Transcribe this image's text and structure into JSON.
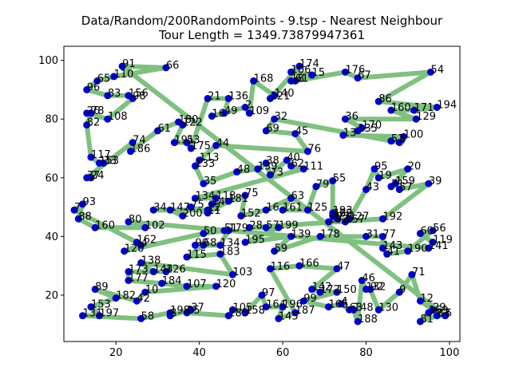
{
  "chart_data": {
    "type": "line",
    "title": "Data/Random/200RandomPoints - 9.tsp - Nearest Neighbour",
    "subtitle": "Tour Length = 1349.73879947361",
    "xlim": [
      7.5,
      102.5
    ],
    "ylim": [
      4.2,
      104.8
    ],
    "xticks": [
      20,
      40,
      60,
      80,
      100
    ],
    "yticks": [
      20,
      40,
      60,
      80,
      100
    ],
    "colors": {
      "tour": "#80c080",
      "point": "#0000cc"
    },
    "points": [
      {
        "label": "91",
        "x": 21.5,
        "y": 98
      },
      {
        "label": "66",
        "x": 32,
        "y": 97.5
      },
      {
        "label": "110",
        "x": 19.5,
        "y": 94.5
      },
      {
        "label": "65",
        "x": 15.5,
        "y": 93
      },
      {
        "label": "96",
        "x": 13,
        "y": 90
      },
      {
        "label": "83",
        "x": 18,
        "y": 88
      },
      {
        "label": "156",
        "x": 23,
        "y": 88
      },
      {
        "label": "98",
        "x": 24,
        "y": 87
      },
      {
        "label": "108",
        "x": 18,
        "y": 80
      },
      {
        "label": "26",
        "x": 13,
        "y": 82
      },
      {
        "label": "78",
        "x": 14,
        "y": 82
      },
      {
        "label": "82",
        "x": 13,
        "y": 78
      },
      {
        "label": "117",
        "x": 14,
        "y": 67
      },
      {
        "label": "153",
        "x": 16,
        "y": 65
      },
      {
        "label": "33",
        "x": 17,
        "y": 65
      },
      {
        "label": "24",
        "x": 14,
        "y": 60
      },
      {
        "label": "37",
        "x": 13,
        "y": 60
      },
      {
        "label": "74",
        "x": 24,
        "y": 72
      },
      {
        "label": "186",
        "x": 23.5,
        "y": 69
      },
      {
        "label": "61",
        "x": 30,
        "y": 76
      },
      {
        "label": "180",
        "x": 35,
        "y": 79
      },
      {
        "label": "122",
        "x": 36,
        "y": 78
      },
      {
        "label": "191",
        "x": 34,
        "y": 72
      },
      {
        "label": "53",
        "x": 37,
        "y": 72
      },
      {
        "label": "175",
        "x": 38,
        "y": 70
      },
      {
        "label": "21",
        "x": 42,
        "y": 87
      },
      {
        "label": "136",
        "x": 47,
        "y": 87
      },
      {
        "label": "49",
        "x": 46,
        "y": 82
      },
      {
        "label": "16",
        "x": 43,
        "y": 81
      },
      {
        "label": "2",
        "x": 51,
        "y": 84
      },
      {
        "label": "109",
        "x": 52,
        "y": 82
      },
      {
        "label": "168",
        "x": 53,
        "y": 93
      },
      {
        "label": "140",
        "x": 58,
        "y": 88
      },
      {
        "label": "121",
        "x": 57,
        "y": 87
      },
      {
        "label": "174",
        "x": 64,
        "y": 98
      },
      {
        "label": "106",
        "x": 62,
        "y": 96
      },
      {
        "label": "15",
        "x": 67,
        "y": 95
      },
      {
        "label": "18",
        "x": 62,
        "y": 93
      },
      {
        "label": "61",
        "x": 63,
        "y": 93
      },
      {
        "label": "176",
        "x": 75,
        "y": 96
      },
      {
        "label": "67",
        "x": 78,
        "y": 94
      },
      {
        "label": "54",
        "x": 95.5,
        "y": 96
      },
      {
        "label": "86",
        "x": 83,
        "y": 86
      },
      {
        "label": "194",
        "x": 97,
        "y": 84
      },
      {
        "label": "171",
        "x": 91.5,
        "y": 83
      },
      {
        "label": "160",
        "x": 86,
        "y": 83
      },
      {
        "label": "129",
        "x": 92,
        "y": 80
      },
      {
        "label": "36",
        "x": 75,
        "y": 80
      },
      {
        "label": "170",
        "x": 79,
        "y": 77
      },
      {
        "label": "135",
        "x": 78,
        "y": 76
      },
      {
        "label": "13",
        "x": 74.5,
        "y": 74.5
      },
      {
        "label": "100",
        "x": 89,
        "y": 74
      },
      {
        "label": "51",
        "x": 86,
        "y": 72.5
      },
      {
        "label": "4",
        "x": 88,
        "y": 72
      },
      {
        "label": "32",
        "x": 58,
        "y": 80
      },
      {
        "label": "69",
        "x": 56,
        "y": 76
      },
      {
        "label": "45",
        "x": 63,
        "y": 75
      },
      {
        "label": "76",
        "x": 66,
        "y": 69
      },
      {
        "label": "44",
        "x": 44,
        "y": 71
      },
      {
        "label": "113",
        "x": 40,
        "y": 66
      },
      {
        "label": "133",
        "x": 39,
        "y": 64
      },
      {
        "label": "35",
        "x": 41,
        "y": 58
      },
      {
        "label": "48",
        "x": 49,
        "y": 62
      },
      {
        "label": "139",
        "x": 54,
        "y": 63
      },
      {
        "label": "38",
        "x": 56,
        "y": 65
      },
      {
        "label": "73",
        "x": 57,
        "y": 61
      },
      {
        "label": "40",
        "x": 61,
        "y": 66
      },
      {
        "label": "62",
        "x": 62,
        "y": 64
      },
      {
        "label": "111",
        "x": 65,
        "y": 63
      },
      {
        "label": "134",
        "x": 39,
        "y": 53
      },
      {
        "label": "118",
        "x": 44,
        "y": 53
      },
      {
        "label": "14",
        "x": 43,
        "y": 51
      },
      {
        "label": "181",
        "x": 47,
        "y": 52
      },
      {
        "label": "11",
        "x": 42,
        "y": 48
      },
      {
        "label": "75",
        "x": 38,
        "y": 50
      },
      {
        "label": "200",
        "x": 36,
        "y": 47
      },
      {
        "label": "147",
        "x": 33,
        "y": 49
      },
      {
        "label": "34",
        "x": 29,
        "y": 49
      },
      {
        "label": "12",
        "x": 42,
        "y": 49
      },
      {
        "label": "75",
        "x": 51,
        "y": 54
      },
      {
        "label": "152",
        "x": 50,
        "y": 47
      },
      {
        "label": "16",
        "x": 56,
        "y": 49
      },
      {
        "label": "63",
        "x": 62,
        "y": 53
      },
      {
        "label": "161",
        "x": 60,
        "y": 49
      },
      {
        "label": "125",
        "x": 66,
        "y": 49
      },
      {
        "label": "79",
        "x": 68,
        "y": 57
      },
      {
        "label": "55",
        "x": 72,
        "y": 59
      },
      {
        "label": "193",
        "x": 72,
        "y": 48
      },
      {
        "label": "46",
        "x": 72,
        "y": 47
      },
      {
        "label": "138",
        "x": 72,
        "y": 47
      },
      {
        "label": "22",
        "x": 73,
        "y": 46
      },
      {
        "label": "157",
        "x": 75,
        "y": 45
      },
      {
        "label": "102",
        "x": 71,
        "y": 45
      },
      {
        "label": "127",
        "x": 76,
        "y": 46
      },
      {
        "label": "43",
        "x": 80,
        "y": 56
      },
      {
        "label": "95",
        "x": 82,
        "y": 63
      },
      {
        "label": "19",
        "x": 83,
        "y": 60
      },
      {
        "label": "20",
        "x": 90,
        "y": 63
      },
      {
        "label": "71",
        "x": 86,
        "y": 57
      },
      {
        "label": "159",
        "x": 87,
        "y": 58
      },
      {
        "label": "57",
        "x": 88,
        "y": 56
      },
      {
        "label": "39",
        "x": 95,
        "y": 58
      },
      {
        "label": "192",
        "x": 84,
        "y": 46
      },
      {
        "label": "28",
        "x": 52,
        "y": 43
      },
      {
        "label": "57",
        "x": 56,
        "y": 43
      },
      {
        "label": "199",
        "x": 59,
        "y": 43
      },
      {
        "label": "195",
        "x": 51,
        "y": 38
      },
      {
        "label": "139",
        "x": 62,
        "y": 40
      },
      {
        "label": "59",
        "x": 58,
        "y": 35
      },
      {
        "label": "178",
        "x": 69,
        "y": 40
      },
      {
        "label": "31",
        "x": 80,
        "y": 40
      },
      {
        "label": "77",
        "x": 84,
        "y": 40
      },
      {
        "label": "143",
        "x": 84,
        "y": 36
      },
      {
        "label": "41",
        "x": 85,
        "y": 34
      },
      {
        "label": "190",
        "x": 90,
        "y": 35
      },
      {
        "label": "56",
        "x": 96,
        "y": 42
      },
      {
        "label": "60",
        "x": 93,
        "y": 41
      },
      {
        "label": "119",
        "x": 96,
        "y": 38
      },
      {
        "label": "141",
        "x": 95,
        "y": 36
      },
      {
        "label": "80",
        "x": 23,
        "y": 45
      },
      {
        "label": "102",
        "x": 27,
        "y": 43
      },
      {
        "label": "160",
        "x": 15,
        "y": 43
      },
      {
        "label": "88",
        "x": 11,
        "y": 46
      },
      {
        "label": "93",
        "x": 12,
        "y": 51
      },
      {
        "label": "7",
        "x": 10,
        "y": 49
      },
      {
        "label": "162",
        "x": 25,
        "y": 38
      },
      {
        "label": "4",
        "x": 26,
        "y": 37
      },
      {
        "label": "120",
        "x": 22,
        "y": 35
      },
      {
        "label": "50",
        "x": 41,
        "y": 41
      },
      {
        "label": "51",
        "x": 46,
        "y": 42
      },
      {
        "label": "179",
        "x": 47,
        "y": 42
      },
      {
        "label": "134",
        "x": 45,
        "y": 37
      },
      {
        "label": "90",
        "x": 39,
        "y": 37
      },
      {
        "label": "68",
        "x": 41,
        "y": 37
      },
      {
        "label": "115",
        "x": 37,
        "y": 33
      },
      {
        "label": "183",
        "x": 45,
        "y": 34
      },
      {
        "label": "103",
        "x": 48,
        "y": 27
      },
      {
        "label": "138",
        "x": 26,
        "y": 31
      },
      {
        "label": "144",
        "x": 29,
        "y": 28
      },
      {
        "label": "126",
        "x": 32,
        "y": 28
      },
      {
        "label": "173",
        "x": 23,
        "y": 28
      },
      {
        "label": "177",
        "x": 23,
        "y": 25
      },
      {
        "label": "184",
        "x": 31,
        "y": 24
      },
      {
        "label": "107",
        "x": 37,
        "y": 23
      },
      {
        "label": "120",
        "x": 44,
        "y": 23
      },
      {
        "label": "10",
        "x": 27,
        "y": 21
      },
      {
        "label": "42",
        "x": 25,
        "y": 18
      },
      {
        "label": "89",
        "x": 15,
        "y": 22
      },
      {
        "label": "182",
        "x": 20,
        "y": 19
      },
      {
        "label": "153",
        "x": 14,
        "y": 16
      },
      {
        "label": "197",
        "x": 16,
        "y": 13
      },
      {
        "label": "131",
        "x": 12,
        "y": 13
      },
      {
        "label": "58",
        "x": 26,
        "y": 12
      },
      {
        "label": "198",
        "x": 33,
        "y": 14
      },
      {
        "label": "8",
        "x": 33,
        "y": 13
      },
      {
        "label": "37",
        "x": 38,
        "y": 15
      },
      {
        "label": "25",
        "x": 37,
        "y": 14
      },
      {
        "label": "185",
        "x": 47,
        "y": 13
      },
      {
        "label": "105",
        "x": 48,
        "y": 15
      },
      {
        "label": "158",
        "x": 51,
        "y": 14
      },
      {
        "label": "97",
        "x": 55,
        "y": 20
      },
      {
        "label": "164",
        "x": 56,
        "y": 16
      },
      {
        "label": "196",
        "x": 60,
        "y": 16
      },
      {
        "label": "145",
        "x": 59,
        "y": 12
      },
      {
        "label": "187",
        "x": 63,
        "y": 14
      },
      {
        "label": "116",
        "x": 57,
        "y": 29
      },
      {
        "label": "166",
        "x": 64,
        "y": 30
      },
      {
        "label": "47",
        "x": 73,
        "y": 29
      },
      {
        "label": "142",
        "x": 67,
        "y": 22
      },
      {
        "label": "172",
        "x": 69,
        "y": 21
      },
      {
        "label": "150",
        "x": 73,
        "y": 21
      },
      {
        "label": "99",
        "x": 65,
        "y": 18
      },
      {
        "label": "165",
        "x": 71,
        "y": 16
      },
      {
        "label": "4",
        "x": 74,
        "y": 17
      },
      {
        "label": "63",
        "x": 76,
        "y": 15
      },
      {
        "label": "148",
        "x": 77,
        "y": 15
      },
      {
        "label": "188",
        "x": 78,
        "y": 11
      },
      {
        "label": "46",
        "x": 79,
        "y": 25
      },
      {
        "label": "132",
        "x": 80,
        "y": 22
      },
      {
        "label": "92",
        "x": 81,
        "y": 22
      },
      {
        "label": "130",
        "x": 83,
        "y": 15
      },
      {
        "label": "9",
        "x": 88,
        "y": 21
      },
      {
        "label": "71",
        "x": 91,
        "y": 27
      },
      {
        "label": "12",
        "x": 93,
        "y": 18
      },
      {
        "label": "29",
        "x": 96,
        "y": 15
      },
      {
        "label": "169",
        "x": 95,
        "y": 14
      },
      {
        "label": "81",
        "x": 93,
        "y": 11
      },
      {
        "label": "83",
        "x": 97,
        "y": 13
      },
      {
        "label": "6",
        "x": 99,
        "y": 13
      }
    ]
  }
}
